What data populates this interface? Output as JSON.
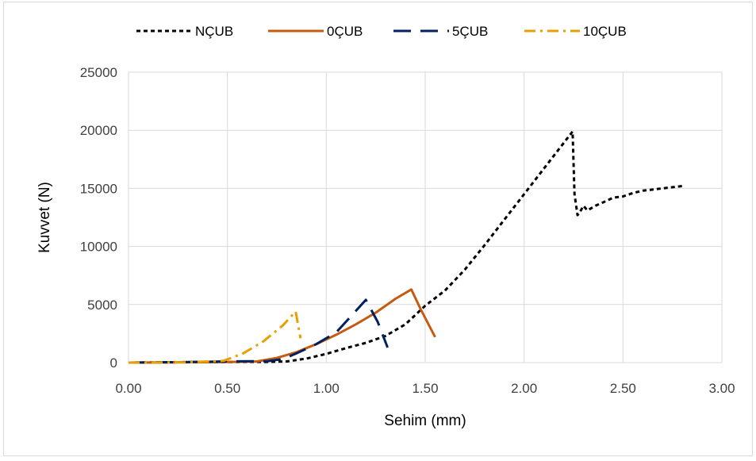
{
  "chart_data": {
    "type": "line",
    "title": "",
    "xlabel": "Sehim (mm)",
    "ylabel": "Kuvvet (N)",
    "xlim": [
      0,
      3
    ],
    "ylim": [
      0,
      25000
    ],
    "x_ticks": [
      "0.00",
      "0.50",
      "1.00",
      "1.50",
      "2.00",
      "2.50",
      "3.00"
    ],
    "y_ticks": [
      "0",
      "5000",
      "10000",
      "15000",
      "20000",
      "25000"
    ],
    "grid": true,
    "legend_position": "top",
    "series": [
      {
        "name": "NÇUB",
        "color": "#000000",
        "dash": "dotted",
        "points": [
          [
            0,
            0
          ],
          [
            0.4,
            50
          ],
          [
            0.7,
            60
          ],
          [
            0.8,
            100
          ],
          [
            0.9,
            350
          ],
          [
            1.0,
            750
          ],
          [
            1.1,
            1250
          ],
          [
            1.2,
            1700
          ],
          [
            1.3,
            2300
          ],
          [
            1.4,
            3300
          ],
          [
            1.5,
            4900
          ],
          [
            1.6,
            6200
          ],
          [
            1.7,
            8000
          ],
          [
            1.8,
            10100
          ],
          [
            1.9,
            12300
          ],
          [
            2.0,
            14500
          ],
          [
            2.1,
            16700
          ],
          [
            2.2,
            18900
          ],
          [
            2.245,
            19900
          ],
          [
            2.255,
            14500
          ],
          [
            2.27,
            12700
          ],
          [
            2.28,
            12900
          ],
          [
            2.3,
            13500
          ],
          [
            2.32,
            13100
          ],
          [
            2.36,
            13500
          ],
          [
            2.4,
            13800
          ],
          [
            2.45,
            14200
          ],
          [
            2.5,
            14300
          ],
          [
            2.55,
            14600
          ],
          [
            2.6,
            14800
          ],
          [
            2.65,
            14900
          ],
          [
            2.7,
            15000
          ],
          [
            2.8,
            15200
          ]
        ]
      },
      {
        "name": "0ÇUB",
        "color": "#C55A11",
        "dash": "solid",
        "points": [
          [
            0,
            0
          ],
          [
            0.5,
            50
          ],
          [
            0.65,
            100
          ],
          [
            0.75,
            400
          ],
          [
            0.85,
            900
          ],
          [
            0.95,
            1600
          ],
          [
            1.05,
            2400
          ],
          [
            1.15,
            3300
          ],
          [
            1.25,
            4300
          ],
          [
            1.35,
            5500
          ],
          [
            1.43,
            6300
          ],
          [
            1.48,
            4500
          ],
          [
            1.55,
            2200
          ]
        ]
      },
      {
        "name": "5ÇUB",
        "color": "#002060",
        "dash": "dashed",
        "points": [
          [
            0,
            0
          ],
          [
            0.3,
            50
          ],
          [
            0.5,
            100
          ],
          [
            0.7,
            120
          ],
          [
            0.78,
            300
          ],
          [
            0.85,
            800
          ],
          [
            0.95,
            1600
          ],
          [
            1.05,
            2600
          ],
          [
            1.12,
            3900
          ],
          [
            1.2,
            5400
          ],
          [
            1.26,
            3500
          ],
          [
            1.31,
            1300
          ]
        ]
      },
      {
        "name": "10ÇUB",
        "color": "#E6A000",
        "dash": "dashdot",
        "points": [
          [
            0,
            0
          ],
          [
            0.3,
            30
          ],
          [
            0.48,
            150
          ],
          [
            0.58,
            800
          ],
          [
            0.68,
            1800
          ],
          [
            0.78,
            3200
          ],
          [
            0.845,
            4400
          ],
          [
            0.86,
            3000
          ],
          [
            0.87,
            2100
          ]
        ]
      }
    ]
  }
}
